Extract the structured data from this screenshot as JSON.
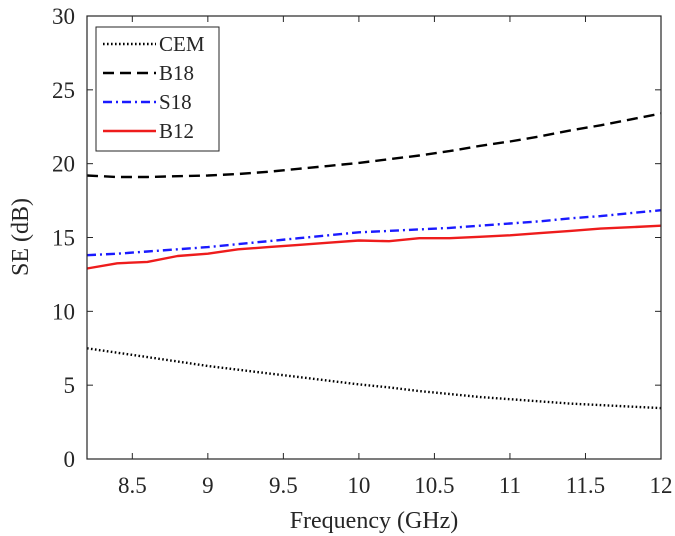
{
  "chart_data": {
    "type": "line",
    "xlabel": "Frequency (GHz)",
    "ylabel": "SE (dB)",
    "xlim": [
      8.2,
      12
    ],
    "ylim": [
      0,
      30
    ],
    "x_ticks": [
      8.5,
      9,
      9.5,
      10,
      10.5,
      11,
      11.5,
      12
    ],
    "x_tick_labels": [
      "8.5",
      "9",
      "9.5",
      "10",
      "10.5",
      "11",
      "11.5",
      "12"
    ],
    "y_ticks": [
      0,
      5,
      10,
      15,
      20,
      25,
      30
    ],
    "y_tick_labels": [
      "0",
      "5",
      "10",
      "15",
      "20",
      "25",
      "30"
    ],
    "grid": false,
    "legend_position": "top-left",
    "series": [
      {
        "name": "CEM",
        "color": "#000000",
        "style": "dotted",
        "x": [
          8.2,
          8.4,
          8.6,
          8.8,
          9.0,
          9.2,
          9.4,
          9.6,
          9.8,
          10.0,
          10.2,
          10.4,
          10.6,
          10.8,
          11.0,
          11.2,
          11.4,
          11.6,
          11.8,
          12.0
        ],
        "y": [
          7.5,
          7.2,
          6.9,
          6.6,
          6.3,
          6.05,
          5.8,
          5.55,
          5.3,
          5.05,
          4.85,
          4.6,
          4.4,
          4.2,
          4.05,
          3.9,
          3.75,
          3.65,
          3.55,
          3.45
        ]
      },
      {
        "name": "B18",
        "color": "#000000",
        "style": "dashed",
        "x": [
          8.2,
          8.4,
          8.6,
          8.8,
          9.0,
          9.2,
          9.4,
          9.6,
          9.8,
          10.0,
          10.2,
          10.4,
          10.6,
          10.8,
          11.0,
          11.2,
          11.4,
          11.6,
          11.8,
          12.0
        ],
        "y": [
          19.2,
          19.1,
          19.1,
          19.15,
          19.2,
          19.3,
          19.45,
          19.65,
          19.85,
          20.05,
          20.3,
          20.55,
          20.85,
          21.2,
          21.5,
          21.85,
          22.25,
          22.6,
          23.0,
          23.4
        ]
      },
      {
        "name": "S18",
        "color": "#1a1aff",
        "style": "dashdot",
        "x": [
          8.2,
          8.4,
          8.6,
          8.8,
          9.0,
          9.2,
          9.4,
          9.6,
          9.8,
          10.0,
          10.2,
          10.4,
          10.6,
          10.8,
          11.0,
          11.2,
          11.4,
          11.6,
          11.8,
          12.0
        ],
        "y": [
          13.8,
          13.9,
          14.05,
          14.2,
          14.35,
          14.55,
          14.75,
          14.95,
          15.15,
          15.35,
          15.45,
          15.55,
          15.65,
          15.8,
          15.95,
          16.1,
          16.3,
          16.45,
          16.65,
          16.85
        ]
      },
      {
        "name": "B12",
        "color": "#ee1c1c",
        "style": "solid",
        "x": [
          8.2,
          8.4,
          8.6,
          8.8,
          9.0,
          9.2,
          9.4,
          9.6,
          9.8,
          10.0,
          10.2,
          10.4,
          10.6,
          10.8,
          11.0,
          11.2,
          11.4,
          11.6,
          11.8,
          12.0
        ],
        "y": [
          12.9,
          13.25,
          13.35,
          13.75,
          13.9,
          14.2,
          14.35,
          14.5,
          14.65,
          14.8,
          14.75,
          14.95,
          14.95,
          15.05,
          15.15,
          15.3,
          15.45,
          15.6,
          15.7,
          15.8
        ]
      }
    ]
  }
}
